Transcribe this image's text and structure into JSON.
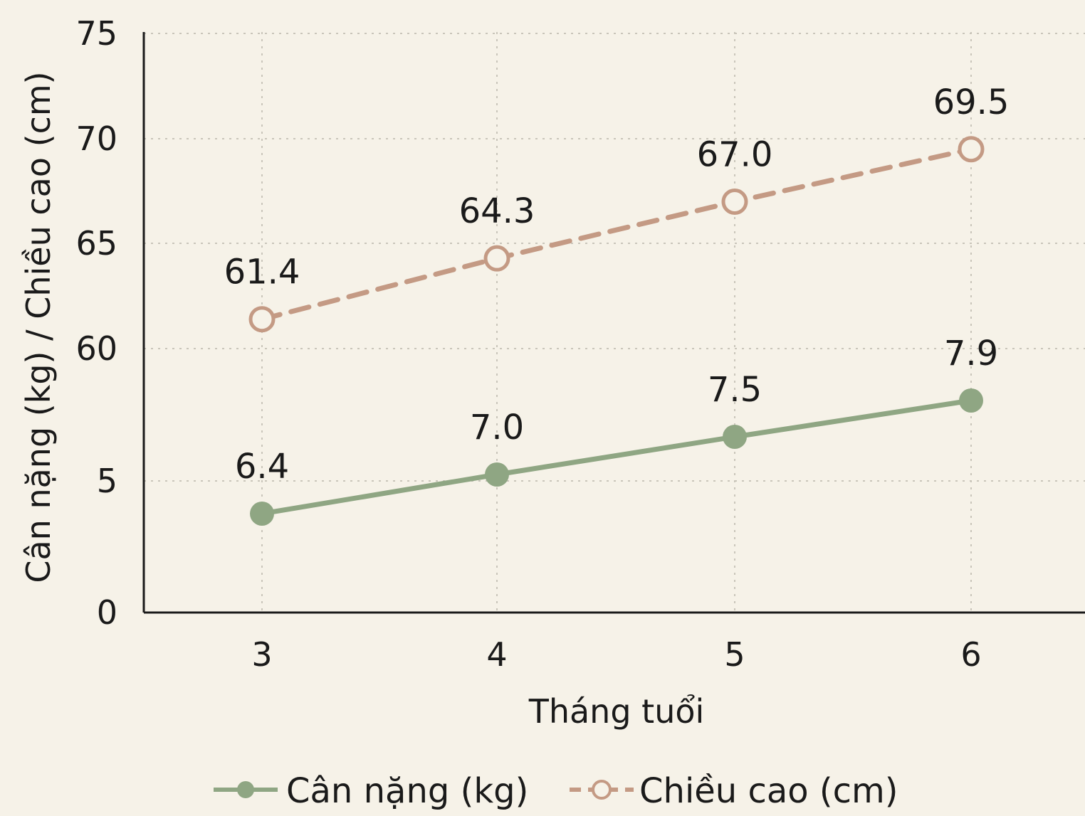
{
  "chart_data": {
    "type": "line",
    "xlabel": "Tháng tuổi",
    "ylabel": "Cân nặng (kg) / Chiều cao (cm)",
    "categories": [
      "3",
      "4",
      "5",
      "6"
    ],
    "y_tick_labels": [
      "0",
      "5",
      "60",
      "65",
      "70",
      "75"
    ],
    "axis_break": "y-axis broken between 5 and 60",
    "grid": true,
    "legend_position": "bottom",
    "series": [
      {
        "name": "Cân nặng (kg)",
        "values": [
          6.4,
          7.0,
          7.5,
          7.9
        ],
        "labels": [
          "6.4",
          "7.0",
          "7.5",
          "7.9"
        ],
        "color": "#8fa683",
        "line_style": "solid",
        "marker": "filled-circle"
      },
      {
        "name": "Chiều cao (cm)",
        "values": [
          61.4,
          64.3,
          67.0,
          69.5
        ],
        "labels": [
          "61.4",
          "64.3",
          "67.0",
          "69.5"
        ],
        "color": "#c49a84",
        "line_style": "dashed",
        "marker": "open-circle"
      }
    ]
  },
  "colors": {
    "background": "#f6f2e8",
    "axis": "#1a1a1a",
    "grid": "#c9c5ba"
  }
}
